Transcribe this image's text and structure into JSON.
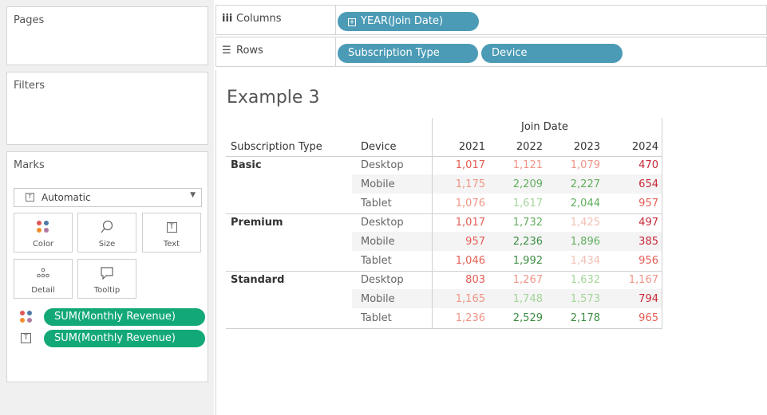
{
  "panels": {
    "pages_title": "Pages",
    "filters_title": "Filters",
    "marks_title": "Marks",
    "mark_type": "Automatic",
    "mark_buttons": [
      {
        "label": "Color",
        "icon": "color-icon"
      },
      {
        "label": "Size",
        "icon": "size-icon"
      },
      {
        "label": "Text",
        "icon": "text-icon"
      },
      {
        "label": "Detail",
        "icon": "detail-icon"
      },
      {
        "label": "Tooltip",
        "icon": "tooltip-icon"
      }
    ],
    "mark_fields": [
      {
        "label": "SUM(Monthly Revenue)",
        "icon": "color-icon"
      },
      {
        "label": "SUM(Monthly Revenue)",
        "icon": "text-icon"
      }
    ]
  },
  "shelves": {
    "columns_label": "Columns",
    "rows_label": "Rows",
    "column_pills": [
      "YEAR(Join Date)"
    ],
    "row_pills": [
      "Subscription Type",
      "Device"
    ]
  },
  "view": {
    "title": "Example 3",
    "column_header": "Join Date",
    "row_headers": [
      "Subscription Type",
      "Device"
    ],
    "years": [
      "2021",
      "2022",
      "2023",
      "2024"
    ],
    "groups": [
      {
        "name": "Basic",
        "rows": [
          {
            "device": "Desktop",
            "values": [
              "1,017",
              "1,121",
              "1,079",
              "470"
            ]
          },
          {
            "device": "Mobile",
            "values": [
              "1,175",
              "2,209",
              "2,227",
              "654"
            ]
          },
          {
            "device": "Tablet",
            "values": [
              "1,076",
              "1,617",
              "2,044",
              "957"
            ]
          }
        ]
      },
      {
        "name": "Premium",
        "rows": [
          {
            "device": "Desktop",
            "values": [
              "1,017",
              "1,732",
              "1,425",
              "497"
            ]
          },
          {
            "device": "Mobile",
            "values": [
              "957",
              "2,236",
              "1,896",
              "385"
            ]
          },
          {
            "device": "Tablet",
            "values": [
              "1,046",
              "1,992",
              "1,434",
              "956"
            ]
          }
        ]
      },
      {
        "name": "Standard",
        "rows": [
          {
            "device": "Desktop",
            "values": [
              "803",
              "1,267",
              "1,632",
              "1,167"
            ]
          },
          {
            "device": "Mobile",
            "values": [
              "1,165",
              "1,748",
              "1,573",
              "794"
            ]
          },
          {
            "device": "Tablet",
            "values": [
              "1,236",
              "2,529",
              "2,178",
              "965"
            ]
          }
        ]
      }
    ],
    "colors": {
      "dark_red": "#c72838",
      "red": "#e45e55",
      "light_red": "#ef9486",
      "pale_red": "#f2c0b6",
      "pale_green": "#a4d59a",
      "green": "#62ae5d",
      "dark_green": "#3c8f42"
    },
    "cell_colors": [
      [
        "#e45e55",
        "#ef9486",
        "#ef9486",
        "#c72838"
      ],
      [
        "#ef9486",
        "#62ae5d",
        "#62ae5d",
        "#c72838"
      ],
      [
        "#ef9486",
        "#a4d59a",
        "#62ae5d",
        "#e45e55"
      ],
      [
        "#e45e55",
        "#62ae5d",
        "#f2c0b6",
        "#c72838"
      ],
      [
        "#e45e55",
        "#3c8f42",
        "#62ae5d",
        "#c72838"
      ],
      [
        "#e45e55",
        "#3c8f42",
        "#f2c0b6",
        "#e45e55"
      ],
      [
        "#e45e55",
        "#ef9486",
        "#a4d59a",
        "#ef9486"
      ],
      [
        "#ef9486",
        "#a4d59a",
        "#a4d59a",
        "#c72838"
      ],
      [
        "#ef9486",
        "#3c8f42",
        "#3c8f42",
        "#e45e55"
      ]
    ]
  }
}
